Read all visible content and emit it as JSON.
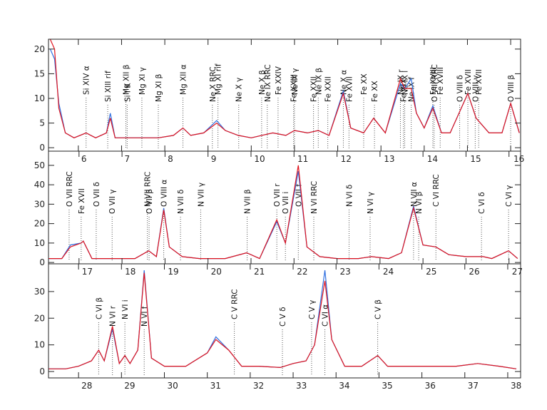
{
  "chart_data": [
    {
      "type": "line",
      "x": [
        5.35,
        5.45,
        5.55,
        5.7,
        5.9,
        6.18,
        6.4,
        6.65,
        6.74,
        6.85,
        7.1,
        7.5,
        7.85,
        8.2,
        8.42,
        8.6,
        8.9,
        9.2,
        9.4,
        9.7,
        10.0,
        10.24,
        10.5,
        10.8,
        11.0,
        11.3,
        11.55,
        11.8,
        12.13,
        12.3,
        12.6,
        12.83,
        13.1,
        13.45,
        13.55,
        13.7,
        13.82,
        14.0,
        14.2,
        14.4,
        14.6,
        15.01,
        15.2,
        15.5,
        15.8,
        16.0,
        16.2
      ],
      "series": [
        {
          "color": "#2f6fe0",
          "values": [
            20,
            18,
            9,
            3,
            2,
            3,
            2,
            3,
            7,
            2,
            2,
            2,
            2,
            2.5,
            4,
            2.5,
            3,
            5.5,
            3.5,
            2.5,
            2,
            2.5,
            3,
            2.5,
            3.5,
            3,
            3.5,
            2.5,
            11.5,
            4,
            3,
            6,
            3,
            13,
            12,
            14,
            7,
            4,
            8.5,
            3,
            3,
            11,
            6,
            3,
            3,
            9,
            3
          ]
        },
        {
          "color": "#e0141e",
          "values": [
            22,
            20,
            8,
            3,
            2,
            3,
            2,
            3,
            6,
            2,
            2,
            2,
            2,
            2.5,
            4,
            2.5,
            3,
            5,
            3.5,
            2.5,
            2,
            2.5,
            3,
            2.5,
            3.5,
            3,
            3.5,
            2.5,
            11,
            4,
            3,
            6,
            3,
            14,
            12,
            12,
            7,
            4,
            8,
            3,
            3,
            11,
            6,
            3,
            3,
            9,
            3
          ]
        }
      ],
      "xlim": [
        5.31,
        16.23
      ],
      "ylim": [
        -0.7,
        22
      ],
      "xticks": [
        6,
        7,
        8,
        9,
        10,
        11,
        12,
        13,
        14,
        15,
        16
      ],
      "yticks": [
        0,
        5,
        10,
        15,
        20
      ],
      "annotations": [
        {
          "text": "Si XIV α",
          "x": 6.18
        },
        {
          "text": "Si XIII rif",
          "x": 6.68
        },
        {
          "text": "Mg XII β",
          "x": 7.1
        },
        {
          "text": "Si I K",
          "x": 7.13
        },
        {
          "text": "Mg XI γ",
          "x": 7.47
        },
        {
          "text": "Mg XI β",
          "x": 7.85
        },
        {
          "text": "Mg XII α",
          "x": 8.42
        },
        {
          "text": "Ne X RRC",
          "x": 9.1
        },
        {
          "text": "Mg XI rif",
          "x": 9.23
        },
        {
          "text": "Ne X γ",
          "x": 9.71
        },
        {
          "text": "Ne X β",
          "x": 10.24
        },
        {
          "text": "Ne IX RRC",
          "x": 10.37
        },
        {
          "text": "Fe XXIV",
          "x": 10.62
        },
        {
          "text": "Fe XXIII",
          "x": 10.98
        },
        {
          "text": "Ne IX γ",
          "x": 11.0
        },
        {
          "text": "Fe XXII",
          "x": 11.44
        },
        {
          "text": "Ne IX β",
          "x": 11.55
        },
        {
          "text": "Fe XXII",
          "x": 11.77
        },
        {
          "text": "Ne X α",
          "x": 12.13
        },
        {
          "text": "Fe XVII",
          "x": 12.26
        },
        {
          "text": "Fe XX",
          "x": 12.6
        },
        {
          "text": "Fe XX",
          "x": 12.85
        },
        {
          "text": "Ne IX r",
          "x": 13.45
        },
        {
          "text": "Fe XIX",
          "x": 13.52
        },
        {
          "text": "Ne IX i",
          "x": 13.55
        },
        {
          "text": "Ne IX f",
          "x": 13.7
        },
        {
          "text": "Fe XVIII",
          "x": 14.2
        },
        {
          "text": "O VIII RRC",
          "x": 14.23
        },
        {
          "text": "Fe XVIII",
          "x": 14.37
        },
        {
          "text": "O VIII δ",
          "x": 14.82
        },
        {
          "text": "Fe XVII",
          "x": 15.01
        },
        {
          "text": "O VIII γ",
          "x": 15.18
        },
        {
          "text": "Fe XVII",
          "x": 15.26
        },
        {
          "text": "O VIII β",
          "x": 16.0
        }
      ]
    },
    {
      "type": "line",
      "x": [
        16.3,
        16.6,
        16.8,
        17.05,
        17.1,
        17.3,
        17.6,
        17.9,
        18.3,
        18.62,
        18.8,
        18.97,
        19.1,
        19.4,
        19.8,
        20.4,
        20.9,
        21.2,
        21.6,
        21.8,
        22.1,
        22.3,
        22.6,
        23.0,
        23.5,
        23.8,
        24.2,
        24.5,
        24.78,
        25.0,
        25.3,
        25.6,
        26.0,
        26.4,
        26.6,
        26.99,
        27.2
      ],
      "series": [
        {
          "color": "#2f6fe0",
          "values": [
            2,
            2,
            9,
            10,
            11,
            2,
            2,
            2,
            2,
            6,
            3,
            28,
            8,
            3,
            2,
            2,
            5,
            2,
            21,
            10,
            47,
            8,
            3,
            2,
            2,
            3,
            2,
            5,
            29,
            9,
            8,
            4,
            3,
            3,
            2,
            6,
            2
          ]
        },
        {
          "color": "#e0141e",
          "values": [
            2,
            2,
            8,
            10,
            11,
            2,
            2,
            2,
            2,
            6,
            3,
            27,
            8,
            3,
            2,
            2,
            5,
            2,
            22,
            10,
            50,
            8,
            3,
            2,
            2,
            3,
            2,
            5,
            28,
            9,
            8,
            4,
            3,
            3,
            2,
            6,
            2
          ]
        }
      ],
      "xlim": [
        16.29,
        27.27
      ],
      "ylim": [
        -0.7,
        57.3
      ],
      "xticks": [
        17,
        18,
        19,
        20,
        21,
        22,
        23,
        24,
        25,
        26,
        27
      ],
      "yticks": [
        0,
        10,
        20,
        30,
        40,
        50
      ],
      "annotations": [
        {
          "text": "O VII RRC",
          "x": 16.77
        },
        {
          "text": "Fe XVII",
          "x": 17.05
        },
        {
          "text": "O VII δ",
          "x": 17.4
        },
        {
          "text": "O VII γ",
          "x": 17.77
        },
        {
          "text": "N VII RRC",
          "x": 18.59
        },
        {
          "text": "O VII β",
          "x": 18.63
        },
        {
          "text": "O VIII α",
          "x": 18.97
        },
        {
          "text": "N VII δ",
          "x": 19.36
        },
        {
          "text": "N VII γ",
          "x": 19.83
        },
        {
          "text": "N VII β",
          "x": 20.91
        },
        {
          "text": "O VII r",
          "x": 21.6
        },
        {
          "text": "O VII i",
          "x": 21.8
        },
        {
          "text": "O VII f",
          "x": 22.1
        },
        {
          "text": "N VI RRC",
          "x": 22.46
        },
        {
          "text": "N VI δ",
          "x": 23.28
        },
        {
          "text": "N VI γ",
          "x": 23.77
        },
        {
          "text": "N VII α",
          "x": 24.78
        },
        {
          "text": "N VI β",
          "x": 24.9
        },
        {
          "text": "C VI RRC",
          "x": 25.3
        },
        {
          "text": "C VI δ",
          "x": 26.36
        },
        {
          "text": "C VI γ",
          "x": 26.99
        }
      ]
    },
    {
      "type": "line",
      "x": [
        27.3,
        27.7,
        28.0,
        28.3,
        28.47,
        28.6,
        28.79,
        28.95,
        29.08,
        29.2,
        29.38,
        29.53,
        29.7,
        30.0,
        30.5,
        31.0,
        31.2,
        31.5,
        31.8,
        32.2,
        32.7,
        33.0,
        33.3,
        33.5,
        33.74,
        33.9,
        34.2,
        34.6,
        34.97,
        35.2,
        35.8,
        36.3,
        36.8,
        37.3,
        37.8,
        38.2
      ],
      "series": [
        {
          "color": "#2f6fe0",
          "values": [
            1,
            1,
            2,
            4,
            8,
            4,
            16,
            3,
            6,
            3,
            8,
            38,
            5,
            2,
            2,
            7,
            13,
            8,
            2,
            2,
            1.5,
            3,
            4,
            10,
            38,
            12,
            2,
            2,
            6,
            2,
            2,
            2,
            2,
            3,
            2,
            1
          ]
        },
        {
          "color": "#e0141e",
          "values": [
            1,
            1,
            2,
            4,
            8,
            4,
            17,
            3,
            6,
            3,
            8,
            37,
            5,
            2,
            2,
            7,
            12,
            8,
            2,
            2,
            1.5,
            3,
            4,
            10,
            34,
            12,
            2,
            2,
            6,
            2,
            2,
            2,
            2,
            3,
            2,
            1
          ]
        }
      ],
      "xlim": [
        27.3,
        38.3
      ],
      "ylim": [
        -2.4,
        40.4
      ],
      "xticks": [
        28,
        29,
        30,
        31,
        32,
        33,
        34,
        35,
        36,
        37,
        38
      ],
      "yticks": [
        0,
        10,
        20,
        30
      ],
      "annotations": [
        {
          "text": "C VI β",
          "x": 28.47
        },
        {
          "text": "N VI r",
          "x": 28.79
        },
        {
          "text": "N VI i",
          "x": 29.08
        },
        {
          "text": "N VI f",
          "x": 29.53
        },
        {
          "text": "C V RRC",
          "x": 31.63
        },
        {
          "text": "C V δ",
          "x": 32.75
        },
        {
          "text": "C V γ",
          "x": 33.43
        },
        {
          "text": "C VI α",
          "x": 33.74
        },
        {
          "text": "C V β",
          "x": 34.97
        }
      ]
    }
  ]
}
